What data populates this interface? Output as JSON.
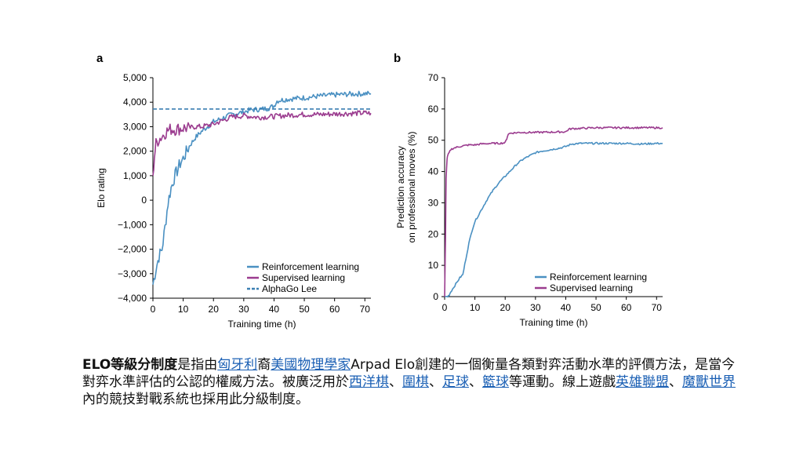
{
  "chart_data": [
    {
      "panel_label": "a",
      "type": "line",
      "title": "",
      "xlabel": "Training time (h)",
      "ylabel": "Elo rating",
      "xlim": [
        0,
        72
      ],
      "ylim": [
        -4000,
        5000
      ],
      "xticks": [
        0,
        10,
        20,
        30,
        40,
        50,
        60,
        70
      ],
      "yticks": [
        -4000,
        -3000,
        -2000,
        -1000,
        0,
        1000,
        2000,
        3000,
        4000,
        5000
      ],
      "ytick_labels": [
        "−4,000",
        "−3,000",
        "−2,000",
        "−1,000",
        "0",
        "1,000",
        "2,000",
        "3,000",
        "4,000",
        "5,000"
      ],
      "legend_position": "bottom-right",
      "series": [
        {
          "name": "Reinforcement learning",
          "color": "#4a90c2",
          "style": "solid",
          "x": [
            0,
            1,
            2,
            3,
            4,
            5,
            6,
            7,
            8,
            9,
            10,
            12,
            14,
            16,
            18,
            20,
            22,
            24,
            26,
            28,
            30,
            32,
            34,
            36,
            38,
            40,
            41,
            42,
            45,
            50,
            55,
            60,
            65,
            70,
            72
          ],
          "y": [
            -3450,
            -2800,
            -2300,
            -2000,
            -1100,
            -100,
            500,
            900,
            1200,
            1500,
            1700,
            2200,
            2550,
            2800,
            3000,
            3200,
            3300,
            3400,
            3500,
            3550,
            3600,
            3680,
            3700,
            3720,
            3750,
            3850,
            4050,
            4080,
            4130,
            4180,
            4250,
            4300,
            4330,
            4350,
            4350
          ]
        },
        {
          "name": "Supervised learning",
          "color": "#9b3c8f",
          "style": "solid",
          "x": [
            0,
            0.5,
            1,
            2,
            3,
            4,
            5,
            6,
            8,
            10,
            12,
            14,
            16,
            18,
            20,
            22,
            24,
            26,
            28,
            30,
            35,
            40,
            45,
            50,
            55,
            60,
            65,
            70,
            72
          ],
          "y": [
            1000,
            1800,
            2300,
            2500,
            2600,
            2750,
            2850,
            2900,
            2900,
            2950,
            2950,
            3000,
            3000,
            3050,
            3100,
            3200,
            3300,
            3400,
            3420,
            3450,
            3380,
            3420,
            3470,
            3500,
            3500,
            3520,
            3540,
            3560,
            3550
          ]
        },
        {
          "name": "AlphaGo Lee",
          "color": "#3a7fb2",
          "style": "dashed",
          "x": [
            0,
            72
          ],
          "y": [
            3720,
            3720
          ]
        }
      ]
    },
    {
      "panel_label": "b",
      "type": "line",
      "title": "",
      "xlabel": "Training time (h)",
      "ylabel": "Prediction accuracy on professional moves (%)",
      "ylabel_lines": [
        "Prediction accuracy",
        "on professional moves (%)"
      ],
      "xlim": [
        0,
        72
      ],
      "ylim": [
        0,
        70
      ],
      "xticks": [
        0,
        10,
        20,
        30,
        40,
        50,
        60,
        70
      ],
      "yticks": [
        0,
        10,
        20,
        30,
        40,
        50,
        60,
        70
      ],
      "ytick_labels": [
        "0",
        "10",
        "20",
        "30",
        "40",
        "50",
        "60",
        "70"
      ],
      "legend_position": "bottom-right",
      "series": [
        {
          "name": "Reinforcement learning",
          "color": "#4a90c2",
          "style": "solid",
          "x": [
            0,
            1,
            1.5,
            2,
            3,
            4,
            5,
            6,
            7,
            8,
            9,
            10,
            12,
            14,
            16,
            18,
            20,
            22,
            24,
            26,
            28,
            30,
            32,
            35,
            38,
            40,
            42,
            45,
            50,
            55,
            60,
            65,
            70,
            72
          ],
          "y": [
            0,
            0,
            0.5,
            1.5,
            3,
            4.5,
            6,
            7,
            12,
            17,
            21,
            24,
            27.5,
            31,
            34,
            36.5,
            38.5,
            40.5,
            42.5,
            44,
            45,
            46,
            46.5,
            47,
            47.5,
            48,
            48.8,
            49,
            49,
            49,
            49,
            48.8,
            49,
            49
          ]
        },
        {
          "name": "Supervised learning",
          "color": "#9b3c8f",
          "style": "solid",
          "x": [
            0,
            0.3,
            0.5,
            0.8,
            1,
            1.5,
            2,
            3,
            5,
            8,
            10,
            12,
            15,
            18,
            20,
            20.5,
            21,
            22,
            25,
            30,
            35,
            40,
            41,
            42,
            45,
            50,
            55,
            60,
            65,
            70,
            72
          ],
          "y": [
            0,
            20,
            38,
            44,
            45,
            46,
            47,
            47.5,
            48,
            48.5,
            48.5,
            48.8,
            49,
            49,
            49.2,
            50.5,
            52,
            52.3,
            52.5,
            52.5,
            52.6,
            52.7,
            53.5,
            53.7,
            53.8,
            54,
            54,
            54,
            54,
            54,
            54
          ]
        }
      ]
    }
  ],
  "caption": {
    "term": "ELO等級分制度",
    "s1": "是指由",
    "l1": "匈牙利",
    "s2": "裔",
    "l2": "美國物理學家",
    "s3": "Arpad Elo創建的一個衡量各類對弈活動水準的評價方法，是當今對弈水準評估的公認的權威方法。被廣泛用於",
    "l3": "西洋棋",
    "s4": "、",
    "l4": "圍棋",
    "s5": "、",
    "l5": "足球",
    "s6": "、",
    "l6": "籃球",
    "s7": "等運動。線上遊戲",
    "l7": "英雄聯盟",
    "s8": "、",
    "l8": "魔獸世界",
    "s9": "內的競技對戰系統也採用此分級制度。"
  }
}
